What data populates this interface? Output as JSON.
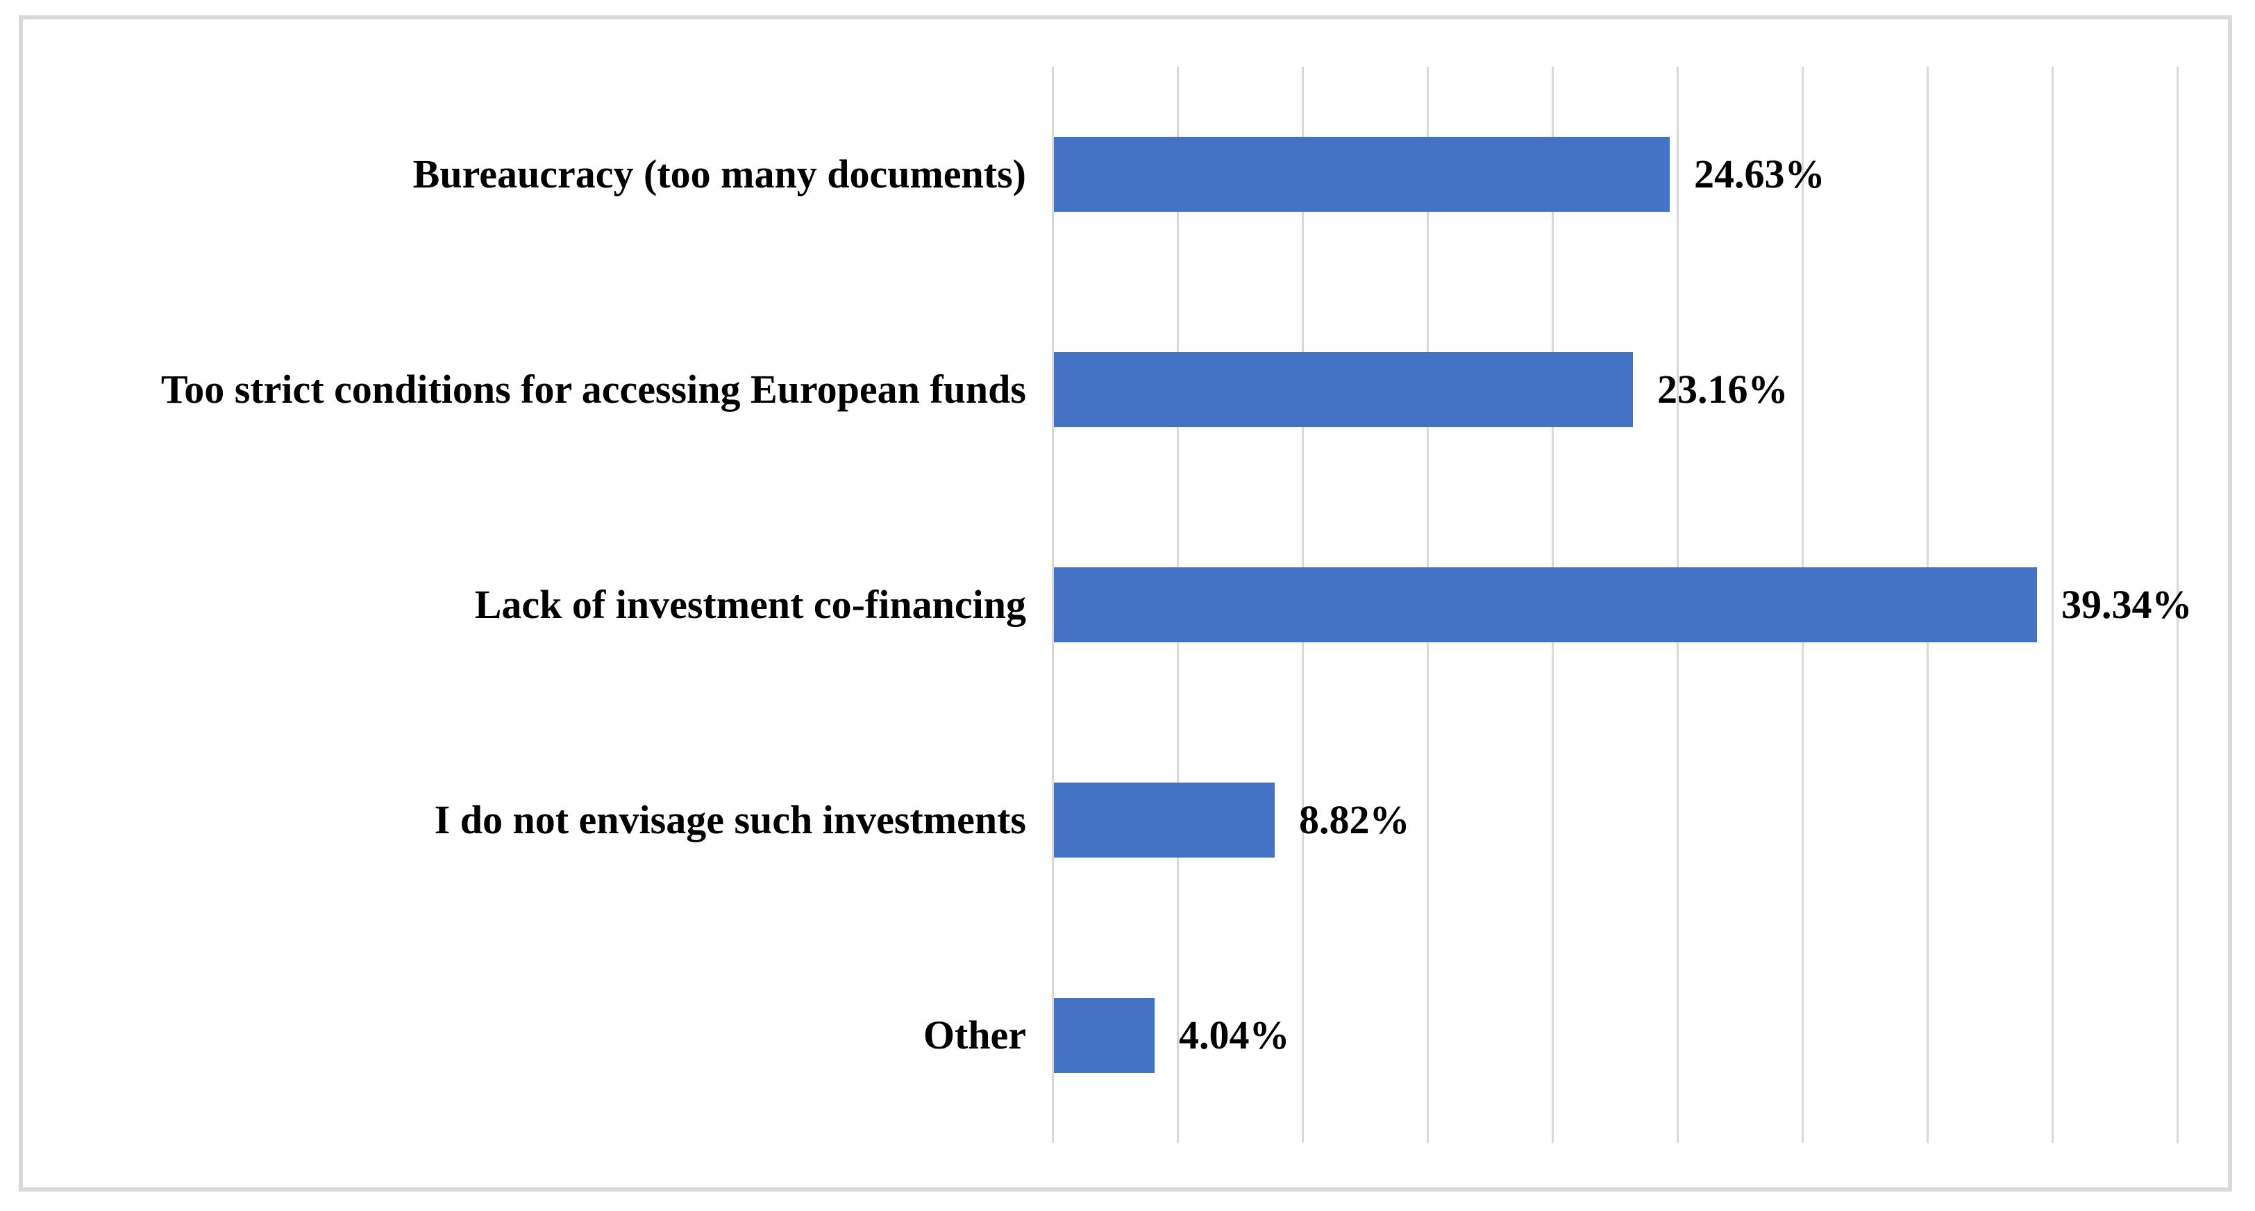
{
  "chart_data": {
    "type": "bar",
    "orientation": "horizontal",
    "title": "",
    "xlabel": "",
    "ylabel": "",
    "categories": [
      "Bureaucracy (too many documents)",
      "Too strict conditions for accessing European funds",
      "Lack of investment co-financing",
      "I do not envisage such investments",
      "Other"
    ],
    "values": [
      24.63,
      23.16,
      39.34,
      8.82,
      4.04
    ],
    "value_labels": [
      "24.63%",
      "23.16%",
      "39.34%",
      "8.82%",
      "4.04%"
    ],
    "xlim": [
      0,
      45
    ],
    "gridline_step_percent": 5,
    "grid": "vertical-gridlines-on",
    "legend": "none",
    "axis_tick_labels": "none",
    "colors": {
      "bar": "#4472C4",
      "gridline": "#d9d9d9",
      "frame_border": "#d9d9d9",
      "text": "#000000",
      "background": "#ffffff"
    }
  }
}
